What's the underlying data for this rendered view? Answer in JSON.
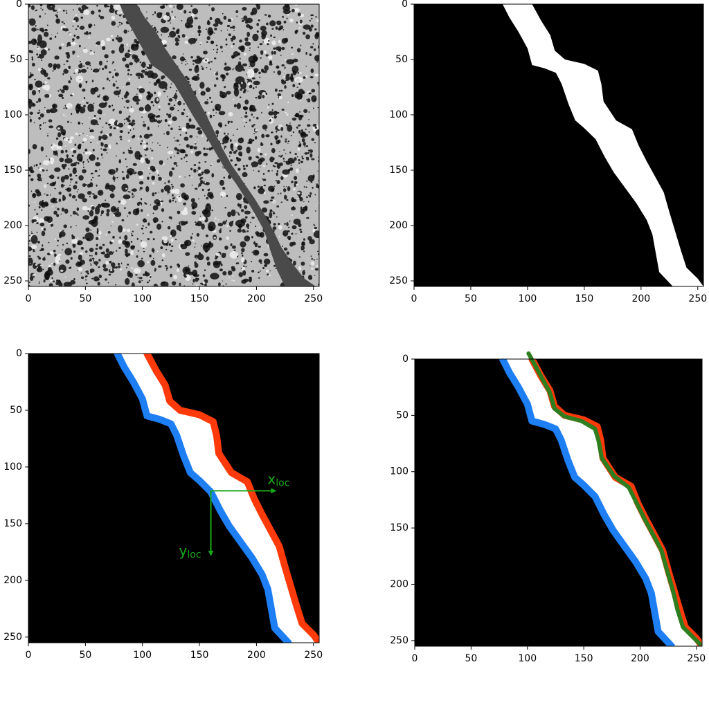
{
  "chart_data": [
    {
      "type": "image",
      "xlim": [
        0,
        255
      ],
      "ylim": [
        255,
        0
      ],
      "xticks": [
        0,
        50,
        100,
        150,
        200,
        250
      ],
      "yticks": [
        0,
        50,
        100,
        150,
        200,
        250
      ],
      "background": "#bdbdbd",
      "texture": "speckle",
      "crack": {
        "color": "#4a4a4a",
        "left": {
          "x": [
            80,
            85,
            92,
            100,
            108,
            118,
            128,
            137,
            145,
            155,
            163,
            172,
            182,
            192,
            200,
            207,
            212,
            218,
            225
          ],
          "y": [
            0,
            12,
            25,
            40,
            55,
            62,
            72,
            88,
            102,
            118,
            132,
            148,
            162,
            178,
            192,
            205,
            222,
            240,
            255
          ]
        },
        "right": {
          "x": [
            95,
            102,
            112,
            120,
            130,
            140,
            148,
            156,
            163,
            170,
            178,
            188,
            198,
            207,
            215,
            222,
            232,
            242,
            252
          ],
          "y": [
            0,
            12,
            25,
            40,
            55,
            70,
            85,
            100,
            115,
            130,
            145,
            160,
            175,
            190,
            205,
            220,
            235,
            248,
            255
          ]
        }
      }
    },
    {
      "type": "image",
      "xlim": [
        0,
        255
      ],
      "ylim": [
        255,
        0
      ],
      "xticks": [
        0,
        50,
        100,
        150,
        200,
        250
      ],
      "yticks": [
        0,
        50,
        100,
        150,
        200,
        250
      ],
      "background": "#000000",
      "mask": {
        "color": "#ffffff",
        "left": {
          "x": [
            78,
            84,
            92,
            100,
            104,
            115,
            125,
            130,
            136,
            142,
            150,
            160,
            168,
            176,
            186,
            196,
            205,
            210,
            213,
            216,
            228
          ],
          "y": [
            0,
            12,
            25,
            40,
            55,
            58,
            62,
            72,
            90,
            105,
            112,
            122,
            138,
            152,
            166,
            180,
            195,
            208,
            225,
            242,
            255
          ]
        },
        "right": {
          "x": [
            104,
            112,
            120,
            124,
            133,
            150,
            162,
            165,
            167,
            178,
            192,
            198,
            205,
            212,
            220,
            225,
            230,
            235,
            240,
            250,
            255
          ],
          "y": [
            0,
            15,
            28,
            42,
            50,
            54,
            60,
            72,
            88,
            105,
            113,
            128,
            142,
            155,
            170,
            188,
            205,
            222,
            238,
            248,
            255
          ]
        }
      }
    },
    {
      "type": "image",
      "xlim": [
        0,
        255
      ],
      "ylim": [
        255,
        0
      ],
      "xticks": [
        0,
        50,
        100,
        150,
        200,
        250
      ],
      "yticks": [
        0,
        50,
        100,
        150,
        200,
        250
      ],
      "background": "#000000",
      "mask": {
        "color": "#ffffff",
        "left": {
          "x": [
            78,
            84,
            92,
            100,
            104,
            115,
            125,
            130,
            136,
            142,
            150,
            160,
            168,
            176,
            186,
            196,
            205,
            210,
            213,
            216,
            228
          ],
          "y": [
            0,
            12,
            25,
            40,
            55,
            58,
            62,
            72,
            90,
            105,
            112,
            122,
            138,
            152,
            166,
            180,
            195,
            208,
            225,
            242,
            255
          ]
        },
        "right": {
          "x": [
            104,
            112,
            120,
            124,
            133,
            150,
            162,
            165,
            167,
            178,
            192,
            198,
            205,
            212,
            220,
            225,
            230,
            235,
            240,
            250,
            255
          ],
          "y": [
            0,
            15,
            28,
            42,
            50,
            54,
            60,
            72,
            88,
            105,
            113,
            128,
            142,
            155,
            170,
            188,
            205,
            222,
            238,
            248,
            255
          ]
        }
      },
      "series": [
        {
          "color": "#1e7ff5",
          "x": [
            78,
            84,
            92,
            100,
            104,
            115,
            125,
            130,
            136,
            142,
            150,
            160,
            168,
            176,
            186,
            196,
            205,
            210,
            213,
            216,
            228
          ],
          "y": [
            0,
            12,
            25,
            40,
            55,
            58,
            62,
            72,
            90,
            105,
            112,
            122,
            138,
            152,
            166,
            180,
            195,
            208,
            225,
            242,
            255
          ]
        },
        {
          "color": "#ff3a0a",
          "x": [
            104,
            112,
            120,
            124,
            133,
            150,
            162,
            165,
            167,
            178,
            192,
            198,
            205,
            212,
            220,
            225,
            230,
            235,
            240,
            250,
            255
          ],
          "y": [
            0,
            15,
            28,
            42,
            50,
            54,
            60,
            72,
            88,
            105,
            113,
            128,
            142,
            155,
            170,
            188,
            205,
            222,
            238,
            248,
            255
          ]
        }
      ],
      "local_axes": {
        "color": "#1aa81a",
        "origin": [
          160,
          121
        ],
        "x_end": [
          217,
          121
        ],
        "y_end": [
          160,
          178
        ],
        "x_label": {
          "base": "x",
          "sub": "loc"
        },
        "y_label": {
          "base": "y",
          "sub": "loc"
        }
      }
    },
    {
      "type": "image",
      "xlim": [
        0,
        255
      ],
      "ylim": [
        255,
        0
      ],
      "xticks": [
        0,
        50,
        100,
        150,
        200,
        250
      ],
      "yticks": [
        0,
        50,
        100,
        150,
        200,
        250
      ],
      "background": "#000000",
      "mask": {
        "color": "#ffffff",
        "left": {
          "x": [
            78,
            84,
            92,
            100,
            104,
            115,
            125,
            130,
            136,
            142,
            150,
            160,
            168,
            176,
            186,
            196,
            205,
            210,
            213,
            216,
            228
          ],
          "y": [
            0,
            12,
            25,
            40,
            55,
            58,
            62,
            72,
            90,
            105,
            112,
            122,
            138,
            152,
            166,
            180,
            195,
            208,
            225,
            242,
            255
          ]
        },
        "right": {
          "x": [
            104,
            112,
            120,
            124,
            133,
            150,
            162,
            165,
            167,
            178,
            192,
            198,
            205,
            212,
            220,
            225,
            230,
            235,
            240,
            250,
            255
          ],
          "y": [
            0,
            15,
            28,
            42,
            50,
            54,
            60,
            72,
            88,
            105,
            113,
            128,
            142,
            155,
            170,
            188,
            205,
            222,
            238,
            248,
            255
          ]
        }
      },
      "series": [
        {
          "color": "#1e7ff5",
          "x": [
            78,
            84,
            92,
            100,
            104,
            115,
            125,
            130,
            136,
            142,
            150,
            160,
            168,
            176,
            186,
            196,
            205,
            210,
            213,
            216,
            228
          ],
          "y": [
            0,
            12,
            25,
            40,
            55,
            58,
            62,
            72,
            90,
            105,
            112,
            122,
            138,
            152,
            166,
            180,
            195,
            208,
            225,
            242,
            255
          ]
        },
        {
          "color": "#ff3a0a",
          "x": [
            104,
            112,
            120,
            124,
            133,
            150,
            162,
            165,
            167,
            178,
            192,
            198,
            205,
            212,
            220,
            225,
            230,
            235,
            240,
            250,
            255
          ],
          "y": [
            0,
            15,
            28,
            42,
            50,
            54,
            60,
            72,
            88,
            105,
            113,
            128,
            142,
            155,
            170,
            188,
            205,
            222,
            238,
            248,
            255
          ]
        },
        {
          "color": "#2e7d1e",
          "x": [
            101,
            106,
            113,
            120,
            124,
            133,
            148,
            160,
            163,
            166,
            177,
            190,
            197,
            204,
            211,
            219,
            224,
            229,
            233,
            238,
            248,
            253
          ],
          "y": [
            -5,
            4,
            17,
            30,
            44,
            51,
            55,
            62,
            72,
            88,
            104,
            114,
            128,
            142,
            155,
            170,
            188,
            205,
            222,
            238,
            248,
            253
          ]
        }
      ]
    }
  ]
}
